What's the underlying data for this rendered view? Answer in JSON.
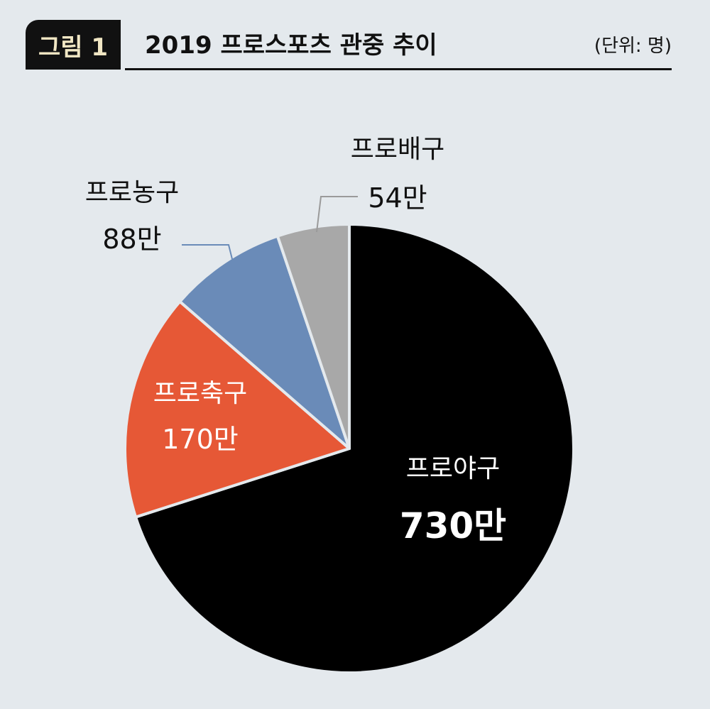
{
  "header": {
    "figure_label": "그림 1",
    "title": "2019 프로스포츠 관중 추이",
    "unit": "(단위: 명)"
  },
  "colors": {
    "background": "#e4e9ed",
    "baseball": "#000000",
    "soccer": "#e65836",
    "basketball": "#6a8bb8",
    "volleyball": "#a8a8a8",
    "leader": "#6a8bb8",
    "leader_gray": "#9a9a9a"
  },
  "chart_data": {
    "type": "pie",
    "title": "2019 프로스포츠 관중 추이",
    "unit": "(단위: 명)",
    "start": "12 o'clock",
    "direction": "clockwise",
    "slices": [
      {
        "label": "프로야구",
        "value": 730,
        "value_label": "730만",
        "color": "#000000"
      },
      {
        "label": "프로축구",
        "value": 170,
        "value_label": "170만",
        "color": "#e65836"
      },
      {
        "label": "프로농구",
        "value": 88,
        "value_label": "88만",
        "color": "#6a8bb8"
      },
      {
        "label": "프로배구",
        "value": 54,
        "value_label": "54만",
        "color": "#a8a8a8"
      }
    ]
  }
}
